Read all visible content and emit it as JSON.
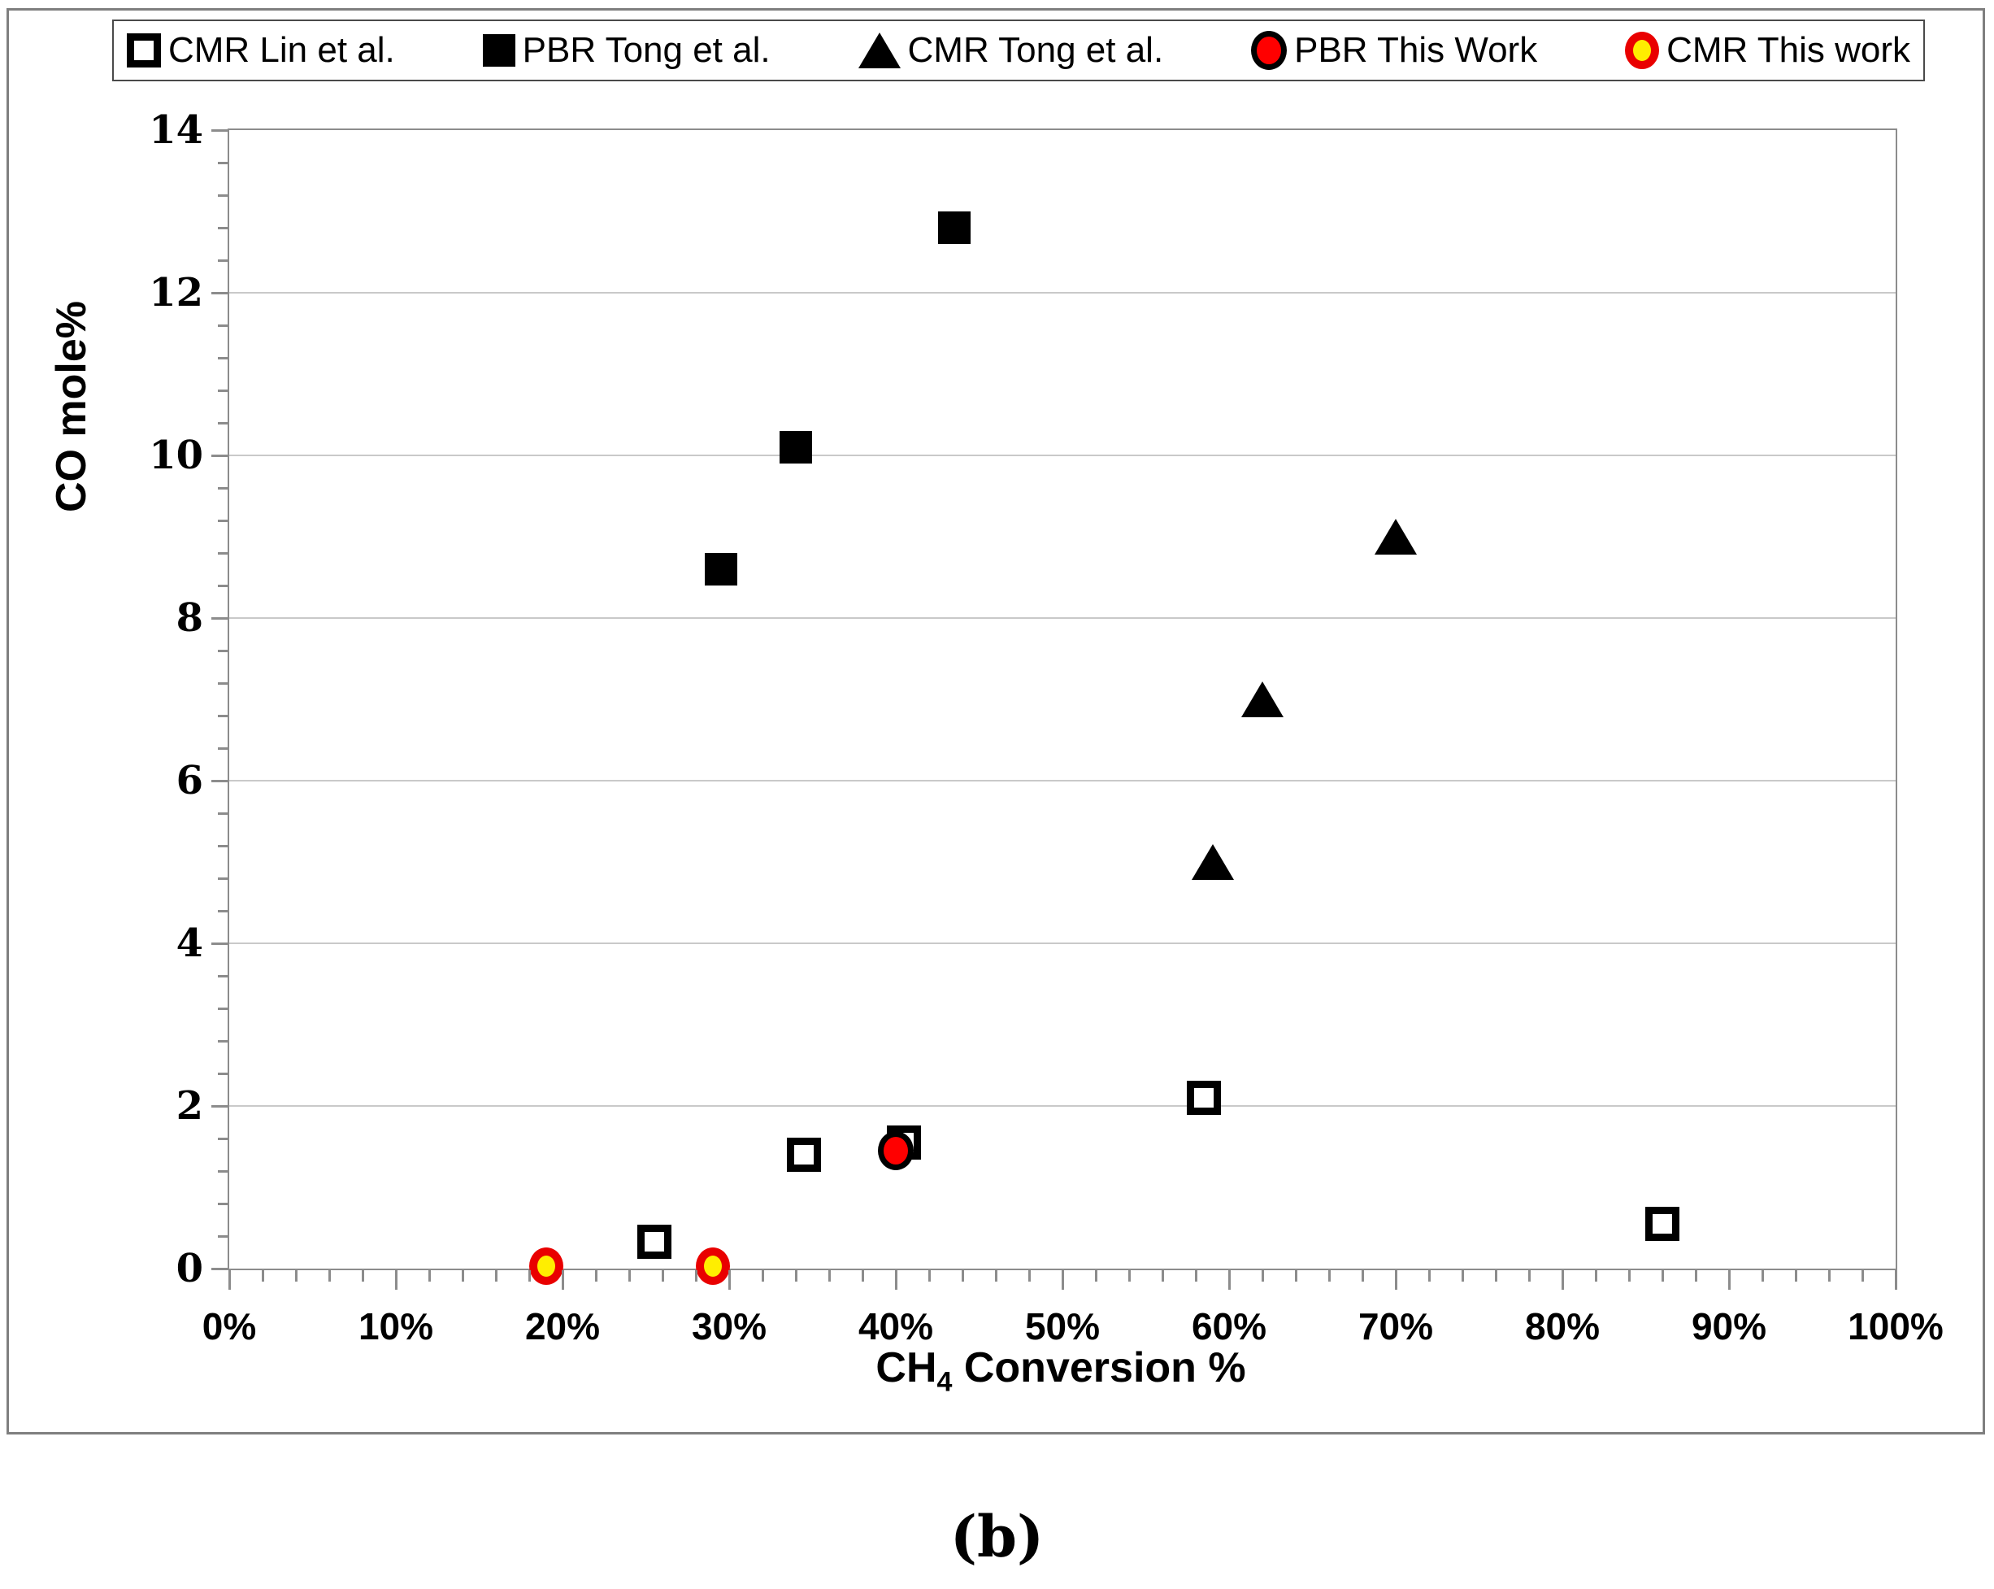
{
  "figure": {
    "caption": "(b)"
  },
  "chart_data": {
    "type": "scatter",
    "title": "",
    "xlabel_prefix": "CH",
    "xlabel_sub": "4",
    "xlabel_suffix": " Conversion %",
    "ylabel": "CO mole%",
    "xlim": [
      0,
      100
    ],
    "ylim": [
      0,
      14
    ],
    "x_tick_values": [
      0,
      10,
      20,
      30,
      40,
      50,
      60,
      70,
      80,
      90,
      100
    ],
    "x_tick_labels": [
      "0%",
      "10%",
      "20%",
      "30%",
      "40%",
      "50%",
      "60%",
      "70%",
      "80%",
      "90%",
      "100%"
    ],
    "y_tick_values": [
      0,
      2,
      4,
      6,
      8,
      10,
      12,
      14
    ],
    "y_tick_labels": [
      "0",
      "2",
      "4",
      "6",
      "8",
      "10",
      "12",
      "14"
    ],
    "x_minor_step": 2,
    "y_minor_step": 0.4,
    "grid": "horizontal-major-only",
    "legend_position": "top",
    "colors": {
      "marker_black": "#000000",
      "marker_red": "#ff0000",
      "marker_yellow": "#ffee00",
      "yellow_circle_edge": "#e90000",
      "gridline": "#c9c9c9",
      "axis": "#8c8c8c"
    },
    "series": [
      {
        "name": "CMR Lin et al.",
        "marker": "open-square",
        "points": [
          [
            25.5,
            0.33
          ],
          [
            34.5,
            1.4
          ],
          [
            40.5,
            1.55
          ],
          [
            58.5,
            2.1
          ],
          [
            86,
            0.55
          ]
        ]
      },
      {
        "name": "PBR Tong et al.",
        "marker": "filled-square",
        "points": [
          [
            29.5,
            8.6
          ],
          [
            34,
            10.1
          ],
          [
            43.5,
            12.8
          ]
        ]
      },
      {
        "name": "CMR Tong et al.",
        "marker": "filled-triangle",
        "points": [
          [
            59,
            5.0
          ],
          [
            62,
            7.0
          ],
          [
            70,
            9.0
          ]
        ]
      },
      {
        "name": "PBR This Work",
        "marker": "red-circle",
        "points": [
          [
            40,
            1.45
          ]
        ]
      },
      {
        "name": "CMR This work",
        "marker": "yellow-circle",
        "points": [
          [
            19,
            0.03
          ],
          [
            29,
            0.03
          ]
        ]
      }
    ]
  }
}
